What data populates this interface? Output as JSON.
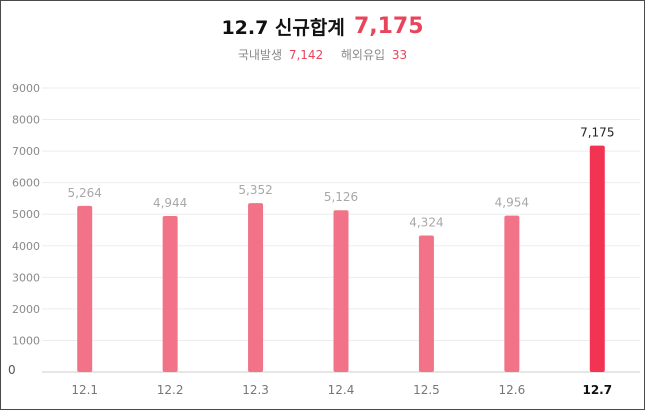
{
  "header": {
    "title": "12.7 신규합계",
    "total": "7,175",
    "domestic_label": "국내발생",
    "domestic_value": "7,142",
    "overseas_label": "해외유입",
    "overseas_value": "33"
  },
  "colors": {
    "accent": "#e8455c",
    "bar": "#f27387",
    "bar_highlight": "#f23352",
    "grid": "#ededed",
    "tick_text": "#8a8a8a"
  },
  "chart_data": {
    "type": "bar",
    "categories": [
      "12.1",
      "12.2",
      "12.3",
      "12.4",
      "12.5",
      "12.6",
      "12.7"
    ],
    "values": [
      5264,
      4944,
      5352,
      5126,
      4324,
      4954,
      7175
    ],
    "value_labels": [
      "5,264",
      "4,944",
      "5,352",
      "5,126",
      "4,324",
      "4,954",
      "7,175"
    ],
    "highlight_index": 6,
    "ylim": [
      0,
      9000
    ],
    "yticks": [
      "0",
      "1000",
      "2000",
      "3000",
      "4000",
      "5000",
      "6000",
      "7000",
      "8000",
      "9000"
    ],
    "grid": true,
    "title": "",
    "xlabel": "",
    "ylabel": ""
  }
}
